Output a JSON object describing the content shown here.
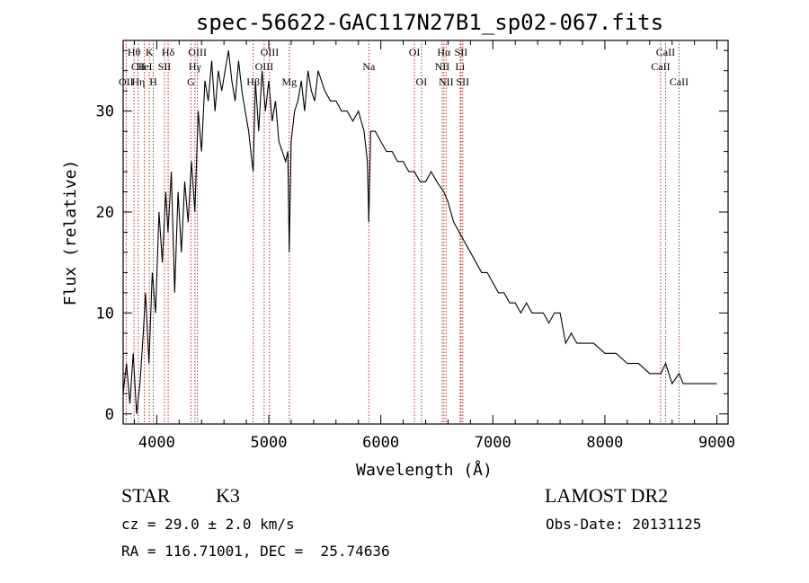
{
  "colors": {
    "spectrum": "#000000",
    "line_marker": "#b03030",
    "text": "#000000"
  },
  "chart_data": {
    "type": "line",
    "title": "spec-56622-GAC117N27B1_sp02-067.fits",
    "xlabel": "Wavelength (Å)",
    "ylabel": "Flux (relative)",
    "xlim": [
      3700,
      9100
    ],
    "ylim": [
      -1,
      37
    ],
    "grid": false,
    "x_ticks": [
      {
        "value": 4000,
        "label": "4000"
      },
      {
        "value": 5000,
        "label": "5000"
      },
      {
        "value": 6000,
        "label": "6000"
      },
      {
        "value": 7000,
        "label": "7000"
      },
      {
        "value": 8000,
        "label": "8000"
      },
      {
        "value": 9000,
        "label": "9000"
      }
    ],
    "y_ticks": [
      {
        "value": 0,
        "label": "0"
      },
      {
        "value": 10,
        "label": "10"
      },
      {
        "value": 20,
        "label": "20"
      },
      {
        "value": 30,
        "label": "30"
      }
    ],
    "series": [
      {
        "x": [
          3700,
          3730,
          3760,
          3790,
          3820,
          3850,
          3880,
          3900,
          3930,
          3960,
          3990,
          4020,
          4050,
          4080,
          4100,
          4130,
          4160,
          4190,
          4220,
          4250,
          4280,
          4310,
          4340,
          4370,
          4400,
          4430,
          4460,
          4490,
          4520,
          4550,
          4580,
          4610,
          4640,
          4670,
          4700,
          4730,
          4760,
          4790,
          4820,
          4850,
          4861,
          4880,
          4910,
          4940,
          4970,
          5000,
          5030,
          5060,
          5090,
          5120,
          5150,
          5170,
          5183,
          5200,
          5230,
          5260,
          5290,
          5320,
          5350,
          5380,
          5410,
          5440,
          5470,
          5500,
          5550,
          5600,
          5650,
          5700,
          5750,
          5800,
          5850,
          5880,
          5893,
          5910,
          5950,
          6000,
          6050,
          6100,
          6150,
          6200,
          6250,
          6300,
          6350,
          6400,
          6450,
          6500,
          6563,
          6600,
          6650,
          6700,
          6750,
          6800,
          6850,
          6900,
          6950,
          7000,
          7050,
          7100,
          7150,
          7200,
          7250,
          7300,
          7350,
          7400,
          7450,
          7500,
          7550,
          7600,
          7650,
          7700,
          7750,
          7800,
          7900,
          8000,
          8100,
          8200,
          8300,
          8400,
          8500,
          8542,
          8600,
          8662,
          8700,
          8800,
          8900,
          9000
        ],
        "y": [
          2,
          5,
          1,
          6,
          0,
          3,
          8,
          12,
          5,
          14,
          10,
          20,
          15,
          22,
          18,
          24,
          12,
          22,
          16,
          23,
          19,
          25,
          20,
          30,
          26,
          33,
          31,
          35,
          30,
          34,
          32,
          34,
          36,
          33,
          31,
          35,
          32,
          30,
          28,
          25,
          24,
          33,
          28,
          34,
          30,
          33,
          29,
          31,
          27,
          26,
          25,
          26,
          16,
          27,
          30,
          31,
          33,
          30,
          34,
          32,
          31,
          34,
          33,
          32,
          31,
          31,
          30,
          30,
          29,
          30,
          28,
          25,
          19,
          28,
          28,
          27,
          26,
          26,
          25,
          25,
          24,
          24,
          23,
          23,
          24,
          23,
          22,
          21,
          19,
          18,
          17,
          16,
          15,
          14,
          14,
          13,
          12,
          12,
          11,
          11,
          10,
          11,
          10,
          10,
          10,
          9,
          10,
          10,
          7,
          8,
          7,
          7,
          7,
          6,
          6,
          5,
          5,
          4,
          4,
          5,
          3,
          4,
          3,
          3,
          3,
          3
        ]
      }
    ],
    "annotations": [
      {
        "label": "Hθ",
        "x": 3797,
        "row": 1
      },
      {
        "label": "CII",
        "x": 3835,
        "row": 2
      },
      {
        "label": "OII",
        "x": 3727,
        "row": 3
      },
      {
        "label": "K",
        "x": 3934,
        "row": 1
      },
      {
        "label": "HeI",
        "x": 3889,
        "row": 2
      },
      {
        "label": "Hη",
        "x": 3835,
        "row": 3
      },
      {
        "label": "Hδ",
        "x": 4102,
        "row": 1
      },
      {
        "label": "SII",
        "x": 4069,
        "row": 2
      },
      {
        "label": "H",
        "x": 3969,
        "row": 3
      },
      {
        "label": "OIII",
        "x": 4363,
        "row": 1
      },
      {
        "label": "Hγ",
        "x": 4341,
        "row": 2
      },
      {
        "label": "G",
        "x": 4305,
        "row": 3
      },
      {
        "label": "OIII",
        "x": 5007,
        "row": 1
      },
      {
        "label": "OIII",
        "x": 4959,
        "row": 2
      },
      {
        "label": "Hβ",
        "x": 4861,
        "row": 3
      },
      {
        "label": "Mg",
        "x": 5183,
        "row": 3
      },
      {
        "label": "Na",
        "x": 5893,
        "row": 2
      },
      {
        "label": "OI",
        "x": 6300,
        "row": 1
      },
      {
        "label": "OI",
        "x": 6363,
        "row": 3
      },
      {
        "label": "Hα",
        "x": 6563,
        "row": 1
      },
      {
        "label": "NII",
        "x": 6548,
        "row": 2
      },
      {
        "label": "NII",
        "x": 6583,
        "row": 3
      },
      {
        "label": "SII",
        "x": 6716,
        "row": 1
      },
      {
        "label": "Li",
        "x": 6708,
        "row": 2
      },
      {
        "label": "SII",
        "x": 6731,
        "row": 3
      },
      {
        "label": "CaII",
        "x": 8542,
        "row": 1
      },
      {
        "label": "CaII",
        "x": 8498,
        "row": 2
      },
      {
        "label": "CaII",
        "x": 8662,
        "row": 3
      }
    ]
  },
  "info": {
    "object_class": "STAR",
    "subclass": "K3",
    "survey": "LAMOST DR2",
    "redshift": "cz = 29.0 ± 2.0 km/s",
    "obs_date": "Obs-Date: 20131125",
    "coords": "RA = 116.71001, DEC =  25.74636"
  }
}
